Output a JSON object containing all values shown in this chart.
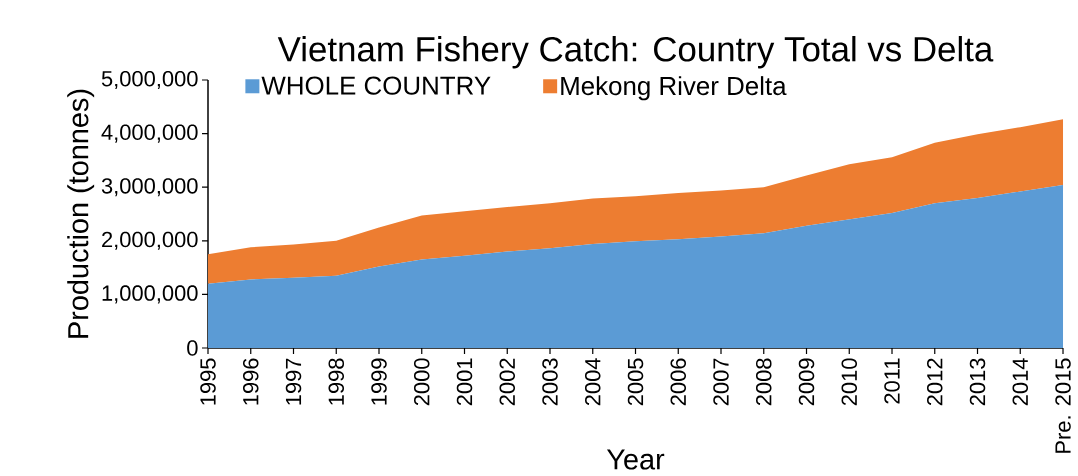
{
  "chart_data": {
    "type": "area",
    "title": "Vietnam Fishery Catch: Country Total vs Delta",
    "xlabel": "Year",
    "ylabel": "Production (tonnes)",
    "categories": [
      "1995",
      "1996",
      "1997",
      "1998",
      "1999",
      "2000",
      "2001",
      "2002",
      "2003",
      "2004",
      "2005",
      "2006",
      "2007",
      "2008",
      "2009",
      "2010",
      "2011",
      "2012",
      "2013",
      "2014",
      "Pre. 2015"
    ],
    "stacked": true,
    "series": [
      {
        "name": "WHOLE COUNTRY",
        "color": "#5b9bd5",
        "values": [
          1200000,
          1280000,
          1310000,
          1350000,
          1520000,
          1650000,
          1720000,
          1800000,
          1860000,
          1940000,
          1990000,
          2030000,
          2080000,
          2140000,
          2280000,
          2400000,
          2520000,
          2700000,
          2800000,
          2920000,
          3040000
        ]
      },
      {
        "name": "Mekong River Delta",
        "color": "#ed7d31",
        "values": [
          550000,
          600000,
          620000,
          650000,
          730000,
          820000,
          830000,
          830000,
          840000,
          850000,
          840000,
          860000,
          860000,
          860000,
          940000,
          1030000,
          1040000,
          1130000,
          1190000,
          1200000,
          1230000
        ]
      }
    ],
    "ylim": [
      0,
      5000000
    ],
    "yticks": [
      0,
      {
        "value": 1000000,
        "label": "1,000,000"
      },
      {
        "value": 2000000,
        "label": "2,000,000"
      },
      {
        "value": 3000000,
        "label": "3,000,000"
      },
      {
        "value": 4000000,
        "label": "4,000,000"
      },
      {
        "value": 5000000,
        "label": "5,000,000"
      }
    ],
    "legend": "top",
    "grid": false
  }
}
